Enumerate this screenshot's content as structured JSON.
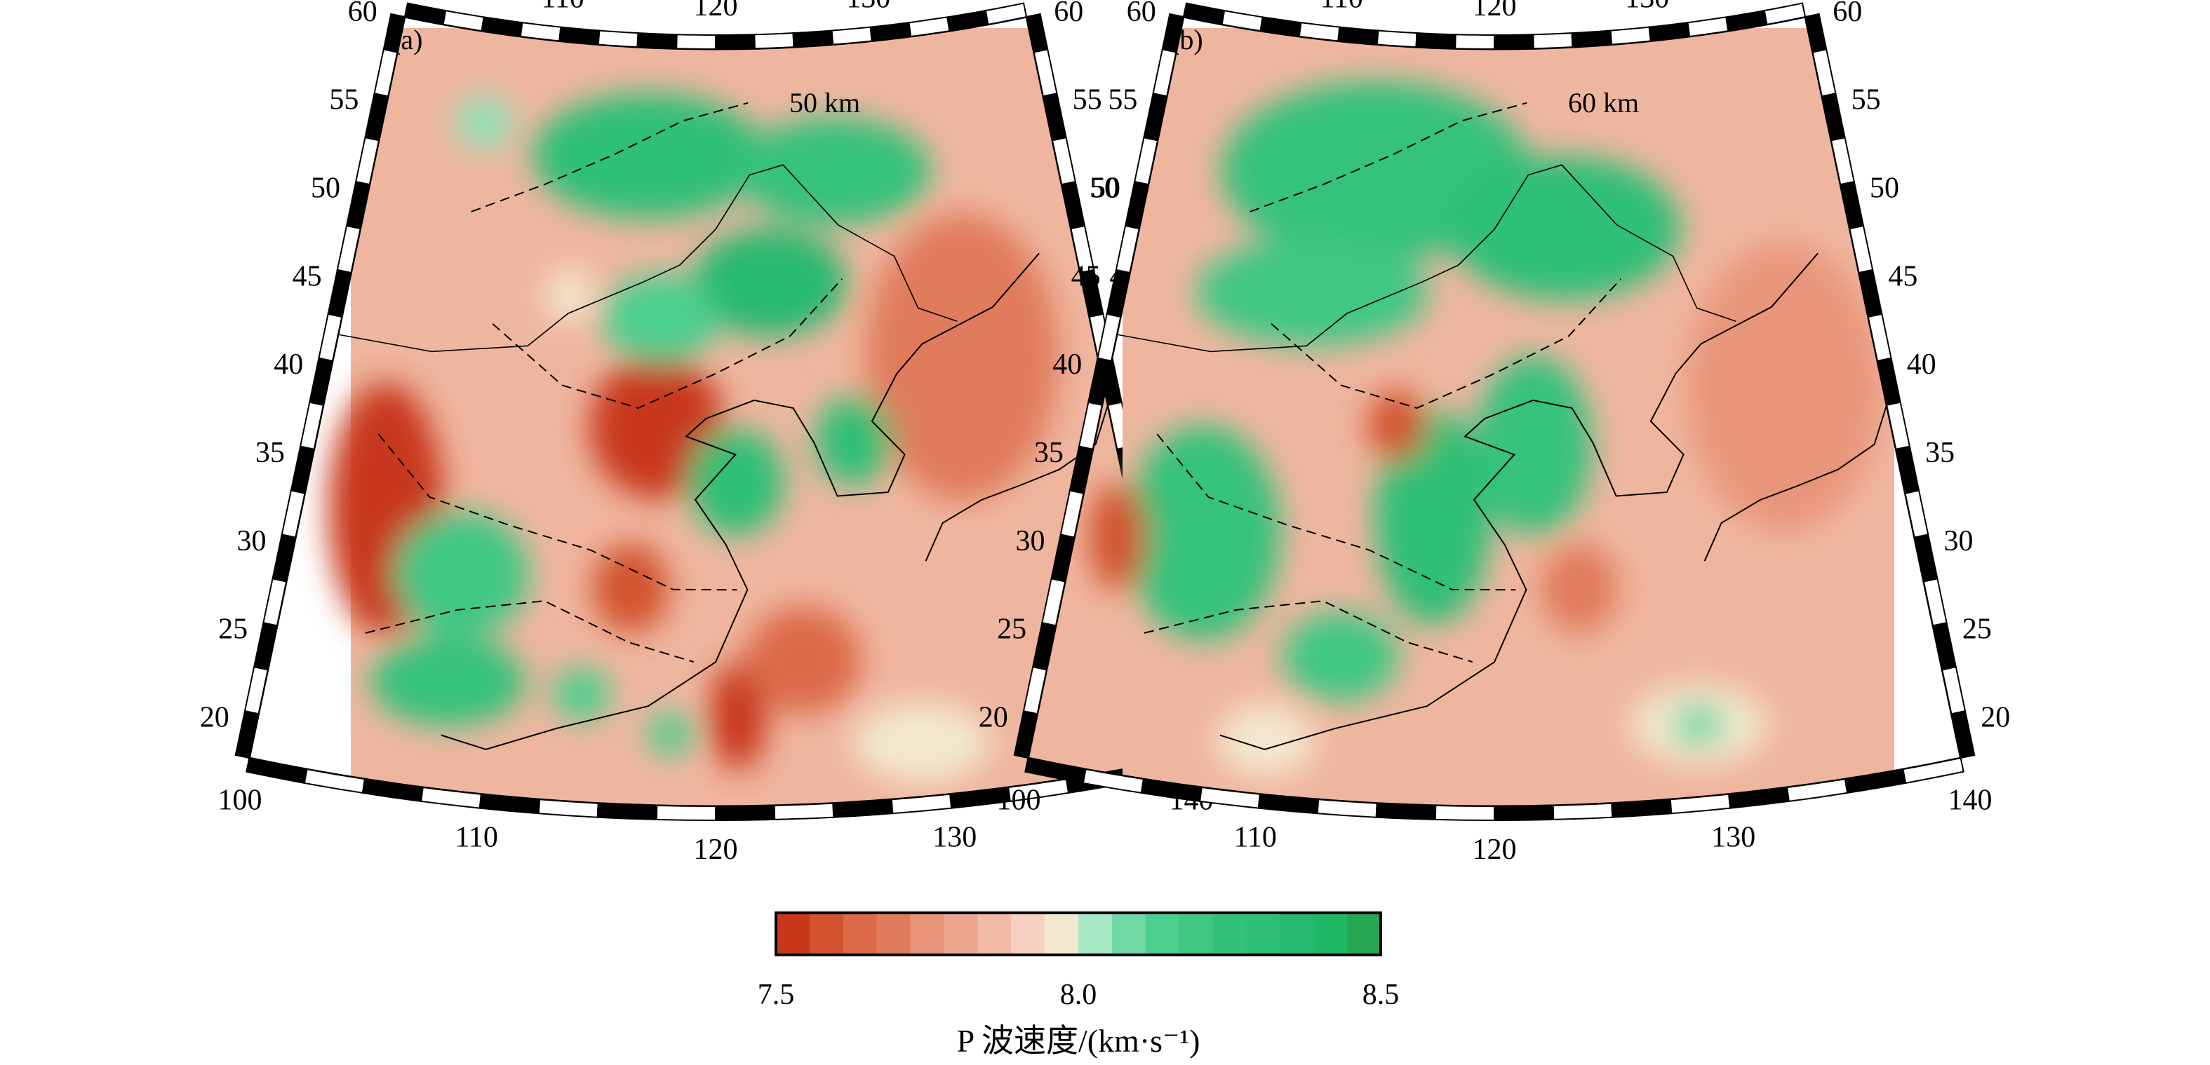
{
  "panels": [
    {
      "id": "a",
      "label": "(a)",
      "depth_label": "50 km",
      "lon_ticks": [
        "100",
        "110",
        "120",
        "130",
        "140"
      ],
      "lat_ticks": [
        "20",
        "25",
        "30",
        "35",
        "40",
        "45",
        "50",
        "55",
        "60"
      ],
      "lon_range": [
        100,
        140
      ],
      "lat_range": [
        18,
        60
      ],
      "blobs": [
        {
          "lon": 104,
          "lat": 33,
          "rx": 3.0,
          "ry": 7,
          "color": "#c8381a"
        },
        {
          "lon": 117,
          "lat": 39,
          "rx": 3.5,
          "ry": 4,
          "color": "#c8381a"
        },
        {
          "lon": 116,
          "lat": 30,
          "rx": 2.0,
          "ry": 2.5,
          "color": "#d2532e"
        },
        {
          "lon": 121,
          "lat": 23,
          "rx": 1.5,
          "ry": 3,
          "color": "#c8381a"
        },
        {
          "lon": 124,
          "lat": 26,
          "rx": 3.0,
          "ry": 3,
          "color": "#dc6a48"
        },
        {
          "lon": 133,
          "lat": 42,
          "rx": 5.0,
          "ry": 8,
          "color": "#e07c5c"
        },
        {
          "lon": 116,
          "lat": 54,
          "rx": 6.0,
          "ry": 3.5,
          "color": "#2fc076"
        },
        {
          "lon": 127,
          "lat": 53,
          "rx": 5.0,
          "ry": 3,
          "color": "#34c27a"
        },
        {
          "lon": 123,
          "lat": 47,
          "rx": 4.0,
          "ry": 3,
          "color": "#27b96e"
        },
        {
          "lon": 117,
          "lat": 45,
          "rx": 3.0,
          "ry": 2.5,
          "color": "#4ccf8e"
        },
        {
          "lon": 121,
          "lat": 36,
          "rx": 2.5,
          "ry": 3,
          "color": "#2fc076"
        },
        {
          "lon": 127,
          "lat": 38,
          "rx": 2.0,
          "ry": 2.5,
          "color": "#2fc076"
        },
        {
          "lon": 108,
          "lat": 30,
          "rx": 3.5,
          "ry": 3.5,
          "color": "#40c883"
        },
        {
          "lon": 108,
          "lat": 24,
          "rx": 4.0,
          "ry": 2.5,
          "color": "#34c27a"
        },
        {
          "lon": 114,
          "lat": 24,
          "rx": 1.5,
          "ry": 1.5,
          "color": "#4ccf8e"
        },
        {
          "lon": 118,
          "lat": 22,
          "rx": 1.2,
          "ry": 1.2,
          "color": "#4ccf8e"
        },
        {
          "lon": 129,
          "lat": 21,
          "rx": 1.5,
          "ry": 1.2,
          "color": "#6fd8a4"
        },
        {
          "lon": 129,
          "lat": 21,
          "rx": 3.5,
          "ry": 2.2,
          "color": "#f3e9cf"
        },
        {
          "lon": 106,
          "lat": 55,
          "rx": 1.5,
          "ry": 1.5,
          "color": "#8ee1b6"
        },
        {
          "lon": 112,
          "lat": 46,
          "rx": 1.2,
          "ry": 1.5,
          "color": "#f3e9cf"
        }
      ]
    },
    {
      "id": "b",
      "label": "(b)",
      "depth_label": "60 km",
      "lon_ticks": [
        "100",
        "110",
        "120",
        "130",
        "140"
      ],
      "lat_ticks": [
        "20",
        "25",
        "30",
        "35",
        "40",
        "45",
        "50",
        "55",
        "60"
      ],
      "lon_range": [
        100,
        140
      ],
      "lat_range": [
        18,
        60
      ],
      "blobs": [
        {
          "lon": 113,
          "lat": 53,
          "rx": 8.0,
          "ry": 5,
          "color": "#34c27a"
        },
        {
          "lon": 124,
          "lat": 50,
          "rx": 6.0,
          "ry": 4,
          "color": "#2fc076"
        },
        {
          "lon": 110,
          "lat": 46,
          "rx": 6.0,
          "ry": 3,
          "color": "#40c883"
        },
        {
          "lon": 106,
          "lat": 32,
          "rx": 4.0,
          "ry": 6,
          "color": "#34c27a"
        },
        {
          "lon": 117,
          "lat": 34,
          "rx": 3.0,
          "ry": 6,
          "color": "#2fc076"
        },
        {
          "lon": 122,
          "lat": 38,
          "rx": 3.0,
          "ry": 5,
          "color": "#34c27a"
        },
        {
          "lon": 113,
          "lat": 26,
          "rx": 3.0,
          "ry": 2.5,
          "color": "#40c883"
        },
        {
          "lon": 115,
          "lat": 39,
          "rx": 1.5,
          "ry": 2,
          "color": "#d2532e"
        },
        {
          "lon": 102,
          "lat": 31,
          "rx": 1.5,
          "ry": 3,
          "color": "#d2532e"
        },
        {
          "lon": 124,
          "lat": 30,
          "rx": 2.0,
          "ry": 2.5,
          "color": "#e07c5c"
        },
        {
          "lon": 135,
          "lat": 40,
          "rx": 5.0,
          "ry": 8,
          "color": "#e8957a"
        },
        {
          "lon": 129,
          "lat": 22,
          "rx": 3.5,
          "ry": 2.2,
          "color": "#f3e9cf"
        },
        {
          "lon": 129,
          "lat": 22,
          "rx": 1.4,
          "ry": 1.2,
          "color": "#6fd8a4"
        },
        {
          "lon": 110,
          "lat": 21,
          "rx": 2.5,
          "ry": 2,
          "color": "#f3e9cf"
        }
      ]
    }
  ],
  "colorbar": {
    "colors": [
      "#c8381a",
      "#d2532e",
      "#dc6a48",
      "#e07c5c",
      "#e8957a",
      "#eda78f",
      "#f2bba7",
      "#f6d1c2",
      "#f3e9cf",
      "#a6e7c6",
      "#6fd8a4",
      "#4ccf8e",
      "#40c883",
      "#34c27a",
      "#2fc076",
      "#27b96e",
      "#1fb865",
      "#27a752"
    ],
    "tick_labels": [
      "7.5",
      "8.0",
      "8.5"
    ],
    "title": "P 波速度/(km·s⁻¹)"
  }
}
